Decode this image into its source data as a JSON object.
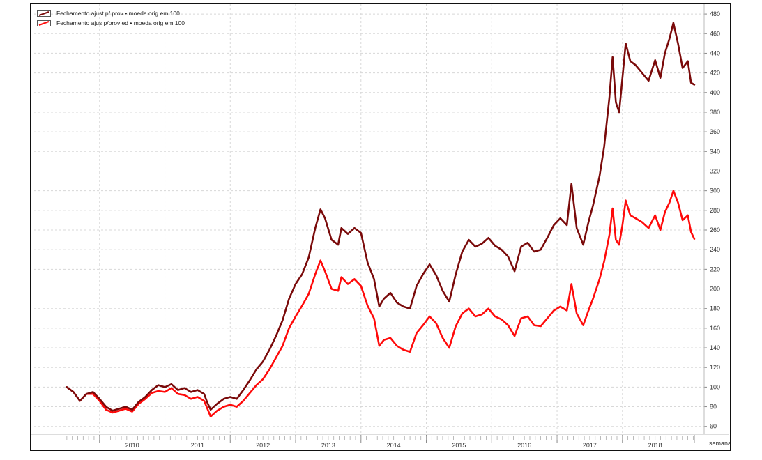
{
  "chart_data": {
    "type": "line",
    "ylim": [
      52,
      490
    ],
    "yticks": [
      60,
      80,
      100,
      120,
      140,
      160,
      180,
      200,
      220,
      240,
      260,
      280,
      300,
      320,
      340,
      360,
      380,
      400,
      420,
      440,
      460,
      480
    ],
    "xlabel": "semana",
    "x_years": [
      "2010",
      "2011",
      "2012",
      "2013",
      "2014",
      "2015",
      "2016",
      "2017",
      "2018"
    ],
    "grid": true,
    "legend_position": "top-left",
    "series": [
      {
        "name": "Fechamento  ajust p/ prov • moeda orig em 100",
        "color": "#7a0a0a",
        "points": [
          [
            2009.5,
            100
          ],
          [
            2009.6,
            95
          ],
          [
            2009.7,
            86
          ],
          [
            2009.8,
            93
          ],
          [
            2009.9,
            95
          ],
          [
            2010.0,
            88
          ],
          [
            2010.1,
            80
          ],
          [
            2010.2,
            76
          ],
          [
            2010.3,
            78
          ],
          [
            2010.4,
            80
          ],
          [
            2010.5,
            77
          ],
          [
            2010.6,
            85
          ],
          [
            2010.7,
            90
          ],
          [
            2010.8,
            97
          ],
          [
            2010.9,
            102
          ],
          [
            2011.0,
            100
          ],
          [
            2011.1,
            103
          ],
          [
            2011.2,
            97
          ],
          [
            2011.3,
            99
          ],
          [
            2011.4,
            95
          ],
          [
            2011.5,
            97
          ],
          [
            2011.6,
            93
          ],
          [
            2011.65,
            84
          ],
          [
            2011.7,
            77
          ],
          [
            2011.8,
            83
          ],
          [
            2011.9,
            88
          ],
          [
            2012.0,
            90
          ],
          [
            2012.1,
            88
          ],
          [
            2012.2,
            97
          ],
          [
            2012.3,
            107
          ],
          [
            2012.4,
            118
          ],
          [
            2012.5,
            126
          ],
          [
            2012.6,
            138
          ],
          [
            2012.7,
            152
          ],
          [
            2012.8,
            168
          ],
          [
            2012.9,
            190
          ],
          [
            2013.0,
            205
          ],
          [
            2013.1,
            215
          ],
          [
            2013.2,
            232
          ],
          [
            2013.3,
            262
          ],
          [
            2013.38,
            281
          ],
          [
            2013.45,
            272
          ],
          [
            2013.55,
            250
          ],
          [
            2013.65,
            245
          ],
          [
            2013.7,
            262
          ],
          [
            2013.8,
            256
          ],
          [
            2013.9,
            262
          ],
          [
            2014.0,
            257
          ],
          [
            2014.1,
            227
          ],
          [
            2014.2,
            210
          ],
          [
            2014.28,
            182
          ],
          [
            2014.35,
            190
          ],
          [
            2014.45,
            196
          ],
          [
            2014.55,
            186
          ],
          [
            2014.65,
            182
          ],
          [
            2014.75,
            180
          ],
          [
            2014.85,
            203
          ],
          [
            2014.95,
            215
          ],
          [
            2015.05,
            225
          ],
          [
            2015.15,
            214
          ],
          [
            2015.25,
            198
          ],
          [
            2015.35,
            187
          ],
          [
            2015.45,
            215
          ],
          [
            2015.55,
            238
          ],
          [
            2015.65,
            250
          ],
          [
            2015.75,
            243
          ],
          [
            2015.85,
            246
          ],
          [
            2015.95,
            252
          ],
          [
            2016.05,
            244
          ],
          [
            2016.15,
            240
          ],
          [
            2016.25,
            233
          ],
          [
            2016.35,
            218
          ],
          [
            2016.45,
            243
          ],
          [
            2016.55,
            247
          ],
          [
            2016.65,
            238
          ],
          [
            2016.75,
            240
          ],
          [
            2016.85,
            252
          ],
          [
            2016.95,
            265
          ],
          [
            2017.05,
            272
          ],
          [
            2017.15,
            265
          ],
          [
            2017.22,
            307
          ],
          [
            2017.3,
            262
          ],
          [
            2017.4,
            245
          ],
          [
            2017.48,
            268
          ],
          [
            2017.55,
            285
          ],
          [
            2017.65,
            315
          ],
          [
            2017.72,
            345
          ],
          [
            2017.8,
            395
          ],
          [
            2017.85,
            436
          ],
          [
            2017.9,
            390
          ],
          [
            2017.95,
            380
          ],
          [
            2018.0,
            415
          ],
          [
            2018.05,
            450
          ],
          [
            2018.12,
            432
          ],
          [
            2018.2,
            428
          ],
          [
            2018.3,
            420
          ],
          [
            2018.4,
            412
          ],
          [
            2018.5,
            433
          ],
          [
            2018.58,
            415
          ],
          [
            2018.65,
            440
          ],
          [
            2018.72,
            455
          ],
          [
            2018.78,
            471
          ],
          [
            2018.85,
            450
          ],
          [
            2018.92,
            425
          ],
          [
            2019.0,
            432
          ],
          [
            2019.05,
            410
          ],
          [
            2019.1,
            408
          ]
        ]
      },
      {
        "name": "Fechamento  ajus p/prov ed • moeda orig em 100",
        "color": "#ff0a0a",
        "points": [
          [
            2009.5,
            100
          ],
          [
            2009.6,
            95
          ],
          [
            2009.7,
            86
          ],
          [
            2009.8,
            93
          ],
          [
            2009.9,
            93
          ],
          [
            2010.0,
            86
          ],
          [
            2010.1,
            77
          ],
          [
            2010.2,
            74
          ],
          [
            2010.3,
            76
          ],
          [
            2010.4,
            78
          ],
          [
            2010.5,
            75
          ],
          [
            2010.6,
            83
          ],
          [
            2010.7,
            88
          ],
          [
            2010.8,
            94
          ],
          [
            2010.9,
            96
          ],
          [
            2011.0,
            95
          ],
          [
            2011.1,
            99
          ],
          [
            2011.2,
            93
          ],
          [
            2011.3,
            92
          ],
          [
            2011.4,
            88
          ],
          [
            2011.5,
            90
          ],
          [
            2011.6,
            86
          ],
          [
            2011.65,
            78
          ],
          [
            2011.7,
            70
          ],
          [
            2011.8,
            76
          ],
          [
            2011.9,
            80
          ],
          [
            2012.0,
            82
          ],
          [
            2012.1,
            80
          ],
          [
            2012.2,
            86
          ],
          [
            2012.3,
            94
          ],
          [
            2012.4,
            102
          ],
          [
            2012.5,
            108
          ],
          [
            2012.6,
            118
          ],
          [
            2012.7,
            130
          ],
          [
            2012.8,
            142
          ],
          [
            2012.9,
            160
          ],
          [
            2013.0,
            172
          ],
          [
            2013.1,
            183
          ],
          [
            2013.2,
            195
          ],
          [
            2013.3,
            215
          ],
          [
            2013.38,
            229
          ],
          [
            2013.45,
            218
          ],
          [
            2013.55,
            200
          ],
          [
            2013.65,
            198
          ],
          [
            2013.7,
            212
          ],
          [
            2013.8,
            205
          ],
          [
            2013.9,
            210
          ],
          [
            2014.0,
            203
          ],
          [
            2014.1,
            183
          ],
          [
            2014.2,
            170
          ],
          [
            2014.28,
            142
          ],
          [
            2014.35,
            148
          ],
          [
            2014.45,
            150
          ],
          [
            2014.55,
            142
          ],
          [
            2014.65,
            138
          ],
          [
            2014.75,
            136
          ],
          [
            2014.85,
            155
          ],
          [
            2014.95,
            163
          ],
          [
            2015.05,
            172
          ],
          [
            2015.15,
            165
          ],
          [
            2015.25,
            150
          ],
          [
            2015.35,
            140
          ],
          [
            2015.45,
            162
          ],
          [
            2015.55,
            175
          ],
          [
            2015.65,
            180
          ],
          [
            2015.75,
            172
          ],
          [
            2015.85,
            174
          ],
          [
            2015.95,
            180
          ],
          [
            2016.05,
            172
          ],
          [
            2016.15,
            169
          ],
          [
            2016.25,
            163
          ],
          [
            2016.35,
            152
          ],
          [
            2016.45,
            170
          ],
          [
            2016.55,
            172
          ],
          [
            2016.65,
            163
          ],
          [
            2016.75,
            162
          ],
          [
            2016.85,
            170
          ],
          [
            2016.95,
            178
          ],
          [
            2017.05,
            182
          ],
          [
            2017.15,
            178
          ],
          [
            2017.22,
            205
          ],
          [
            2017.3,
            175
          ],
          [
            2017.4,
            163
          ],
          [
            2017.48,
            178
          ],
          [
            2017.55,
            190
          ],
          [
            2017.65,
            210
          ],
          [
            2017.72,
            228
          ],
          [
            2017.8,
            255
          ],
          [
            2017.85,
            282
          ],
          [
            2017.9,
            250
          ],
          [
            2017.95,
            245
          ],
          [
            2018.0,
            265
          ],
          [
            2018.05,
            290
          ],
          [
            2018.12,
            275
          ],
          [
            2018.2,
            272
          ],
          [
            2018.3,
            268
          ],
          [
            2018.4,
            262
          ],
          [
            2018.5,
            275
          ],
          [
            2018.58,
            260
          ],
          [
            2018.65,
            278
          ],
          [
            2018.72,
            288
          ],
          [
            2018.78,
            300
          ],
          [
            2018.85,
            288
          ],
          [
            2018.92,
            270
          ],
          [
            2019.0,
            275
          ],
          [
            2019.05,
            258
          ],
          [
            2019.1,
            251
          ]
        ]
      }
    ]
  }
}
